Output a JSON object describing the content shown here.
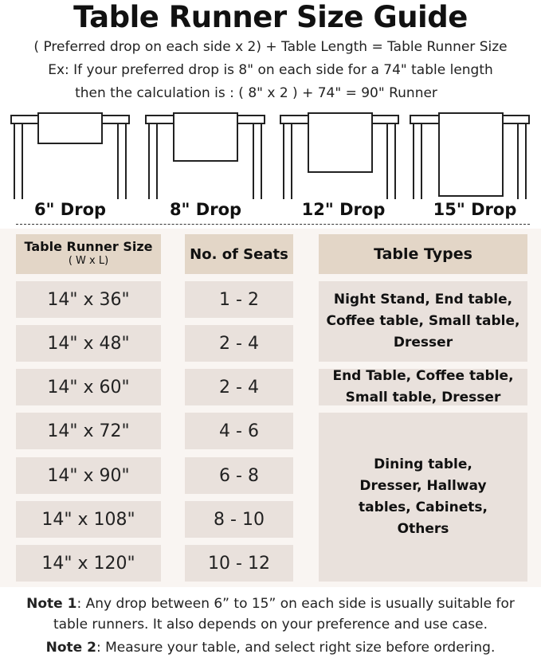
{
  "title": "Table Runner Size Guide",
  "formula": "( Preferred drop on each side x 2) + Table Length = Table Runner Size",
  "example_line1": "Ex: If your preferred drop is 8\" on each side for a 74\" table length",
  "example_line2": "then the calculation is : ( 8\" x 2 ) + 74\" = 90\" Runner",
  "drops": [
    "6\" Drop",
    "8\" Drop",
    "12\" Drop",
    "15\" Drop"
  ],
  "table": {
    "headers": {
      "size": "Table Runner Size",
      "size_sub": "( W x L)",
      "seats": "No. of Seats",
      "types": "Table Types"
    },
    "rows": [
      {
        "size": "14\" x 36\"",
        "seats": "1 - 2"
      },
      {
        "size": "14\" x 48\"",
        "seats": "2 - 4"
      },
      {
        "size": "14\" x 60\"",
        "seats": "2 - 4"
      },
      {
        "size": "14\" x 72\"",
        "seats": "4 - 6"
      },
      {
        "size": "14\" x 90\"",
        "seats": "6 - 8"
      },
      {
        "size": "14\" x 108\"",
        "seats": "8 - 10"
      },
      {
        "size": "14\" x 120\"",
        "seats": "10 - 12"
      }
    ],
    "types": [
      "Night Stand, End table, Coffee table, Small table, Dresser",
      "End Table, Coffee table, Small table, Dresser",
      "Dining table, Dresser, Hallway tables, Cabinets, Others"
    ]
  },
  "notes": {
    "note1_label": "Note 1",
    "note1_text": ": Any drop between 6” to 15” on each side is usually suitable for",
    "note1_line2": "table runners. It also depends on your preference and use case.",
    "note2_label": "Note 2",
    "note2_text": ": Measure your table, and select right size before ordering."
  },
  "colors": {
    "header": "#e3d6c7",
    "cell": "#e9e1dc",
    "panel": "#f9f5f2"
  }
}
